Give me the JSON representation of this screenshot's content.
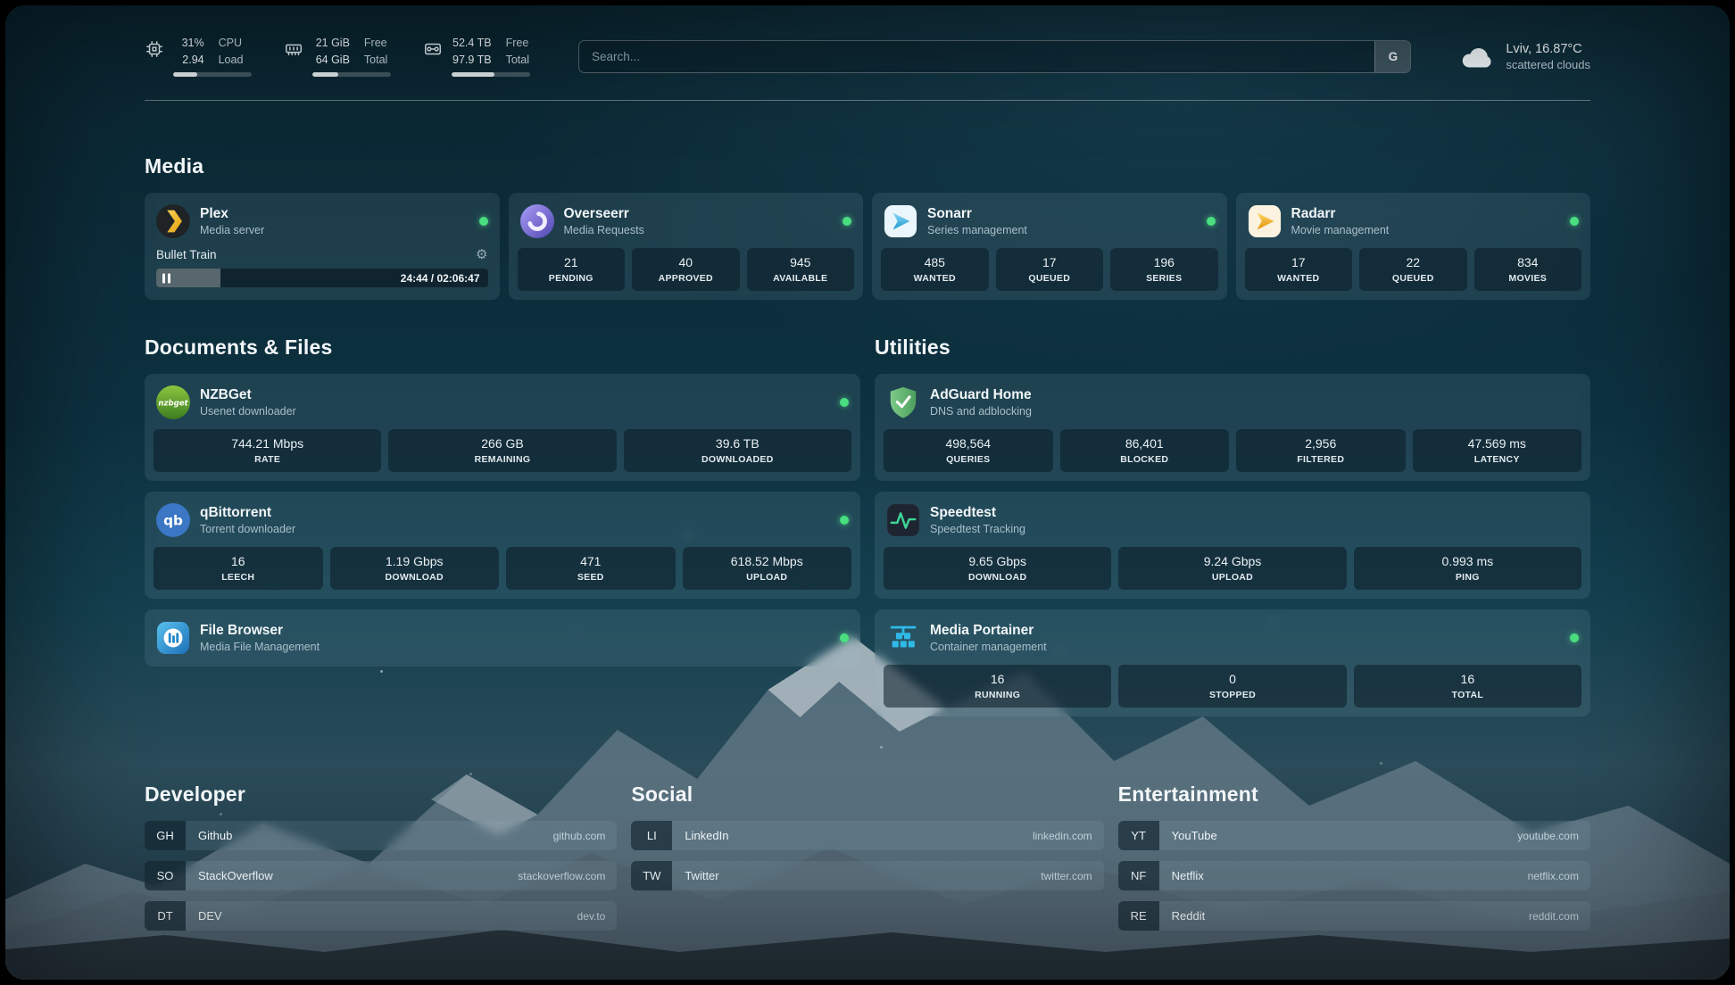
{
  "icons": {
    "gear": "⚙"
  },
  "colors": {
    "status_online": "#4ade80",
    "plex_accent": "#e5a00d",
    "overseerr_accent": "#6c5ce7",
    "sonarr_accent": "#35c5f4",
    "radarr_accent": "#f4b43a",
    "nzbget_accent": "#6aa62a",
    "qbittorrent_accent": "#3b77c4",
    "filebrowser_accent": "#2d8fd5",
    "adguard_accent": "#68bc71",
    "speedtest_accent": "#3dd598",
    "portainer_accent": "#2fb9e8"
  },
  "header": {
    "cpu": {
      "icon": "cpu-chip-icon",
      "value": "31%",
      "load": "2.94",
      "label_top": "CPU",
      "label_bottom": "Load",
      "bar_percent": 31
    },
    "memory": {
      "icon": "memory-stick-icon",
      "free": "21 GiB",
      "total": "64 GiB",
      "label_top": "Free",
      "label_bottom": "Total",
      "bar_percent": 33
    },
    "disk": {
      "icon": "hard-drive-icon",
      "free": "52.4 TB",
      "total": "97.9 TB",
      "label_top": "Free",
      "label_bottom": "Total",
      "bar_percent": 54
    },
    "search": {
      "placeholder": "Search...",
      "provider_label": "G"
    },
    "weather": {
      "icon": "cloud-icon",
      "location": "Lviv, 16.87°C",
      "condition": "scattered clouds"
    }
  },
  "sections": {
    "media": {
      "title": "Media",
      "plex": {
        "name": "Plex",
        "description": "Media server",
        "status": "online",
        "now_playing": {
          "title": "Bullet Train",
          "time": "24:44 / 02:06:47",
          "progress_percent": 19.5
        }
      },
      "overseerr": {
        "name": "Overseerr",
        "description": "Media Requests",
        "status": "online",
        "stats": [
          {
            "value": "21",
            "label": "PENDING"
          },
          {
            "value": "40",
            "label": "APPROVED"
          },
          {
            "value": "945",
            "label": "AVAILABLE"
          }
        ]
      },
      "sonarr": {
        "name": "Sonarr",
        "description": "Series management",
        "status": "online",
        "stats": [
          {
            "value": "485",
            "label": "WANTED"
          },
          {
            "value": "17",
            "label": "QUEUED"
          },
          {
            "value": "196",
            "label": "SERIES"
          }
        ]
      },
      "radarr": {
        "name": "Radarr",
        "description": "Movie management",
        "status": "online",
        "stats": [
          {
            "value": "17",
            "label": "WANTED"
          },
          {
            "value": "22",
            "label": "QUEUED"
          },
          {
            "value": "834",
            "label": "MOVIES"
          }
        ]
      }
    },
    "documents": {
      "title": "Documents & Files",
      "nzbget": {
        "name": "NZBGet",
        "description": "Usenet downloader",
        "status": "online",
        "icon_text": "nzbget",
        "stats": [
          {
            "value": "744.21 Mbps",
            "label": "RATE"
          },
          {
            "value": "266 GB",
            "label": "REMAINING"
          },
          {
            "value": "39.6 TB",
            "label": "DOWNLOADED"
          }
        ]
      },
      "qbittorrent": {
        "name": "qBittorrent",
        "description": "Torrent downloader",
        "status": "online",
        "icon_text": "qb",
        "stats": [
          {
            "value": "16",
            "label": "LEECH"
          },
          {
            "value": "1.19 Gbps",
            "label": "DOWNLOAD"
          },
          {
            "value": "471",
            "label": "SEED"
          },
          {
            "value": "618.52 Mbps",
            "label": "UPLOAD"
          }
        ]
      },
      "filebrowser": {
        "name": "File Browser",
        "description": "Media File Management",
        "status": "online"
      }
    },
    "utilities": {
      "title": "Utilities",
      "adguard": {
        "name": "AdGuard Home",
        "description": "DNS and adblocking",
        "stats": [
          {
            "value": "498,564",
            "label": "QUERIES"
          },
          {
            "value": "86,401",
            "label": "BLOCKED"
          },
          {
            "value": "2,956",
            "label": "FILTERED"
          },
          {
            "value": "47.569 ms",
            "label": "LATENCY"
          }
        ]
      },
      "speedtest": {
        "name": "Speedtest",
        "description": "Speedtest Tracking",
        "stats": [
          {
            "value": "9.65 Gbps",
            "label": "DOWNLOAD"
          },
          {
            "value": "9.24 Gbps",
            "label": "UPLOAD"
          },
          {
            "value": "0.993 ms",
            "label": "PING"
          }
        ]
      },
      "portainer": {
        "name": "Media Portainer",
        "description": "Container management",
        "status": "online",
        "stats": [
          {
            "value": "16",
            "label": "RUNNING"
          },
          {
            "value": "0",
            "label": "STOPPED"
          },
          {
            "value": "16",
            "label": "TOTAL"
          }
        ]
      }
    },
    "developer": {
      "title": "Developer",
      "bookmarks": [
        {
          "abbr": "GH",
          "name": "Github",
          "url": "github.com"
        },
        {
          "abbr": "SO",
          "name": "StackOverflow",
          "url": "stackoverflow.com"
        },
        {
          "abbr": "DT",
          "name": "DEV",
          "url": "dev.to"
        }
      ]
    },
    "social": {
      "title": "Social",
      "bookmarks": [
        {
          "abbr": "LI",
          "name": "LinkedIn",
          "url": "linkedin.com"
        },
        {
          "abbr": "TW",
          "name": "Twitter",
          "url": "twitter.com"
        }
      ]
    },
    "entertainment": {
      "title": "Entertainment",
      "bookmarks": [
        {
          "abbr": "YT",
          "name": "YouTube",
          "url": "youtube.com"
        },
        {
          "abbr": "NF",
          "name": "Netflix",
          "url": "netflix.com"
        },
        {
          "abbr": "RE",
          "name": "Reddit",
          "url": "reddit.com"
        }
      ]
    }
  }
}
